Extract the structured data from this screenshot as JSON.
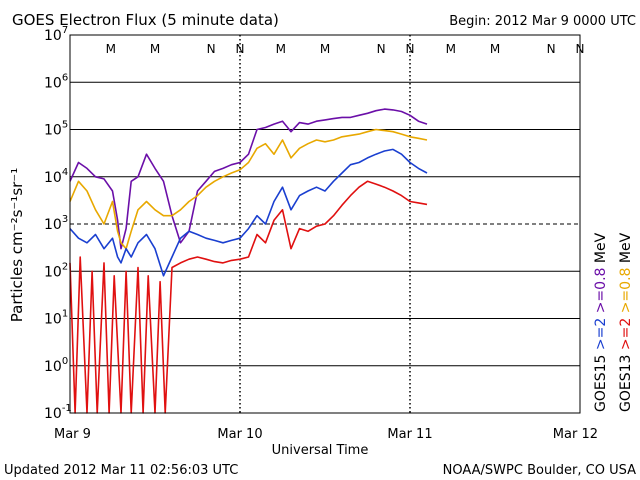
{
  "header": {
    "title": "GOES Electron Flux (5 minute data)",
    "begin": "Begin: 2012 Mar 9 0000 UTC"
  },
  "footer": {
    "updated": "Updated 2012 Mar 11 02:56:03 UTC",
    "credit": "NOAA/SWPC Boulder, CO USA"
  },
  "colors": {
    "g15_2mev": "#1a3fd0",
    "g15_08mev": "#6b0fa8",
    "g13_2mev": "#e01010",
    "g13_08mev": "#e8a800",
    "marker_M": "#c01010",
    "marker_N_red": "#c01010",
    "marker_N_blue": "#1a3fd0"
  },
  "chart_data": {
    "type": "line",
    "title": "GOES Electron Flux (5 minute data)",
    "xlabel": "Universal Time",
    "ylabel": "Particles cm⁻²s⁻¹sr⁻¹",
    "yscale": "log",
    "ylim": [
      0.1,
      10000000
    ],
    "xlim": [
      0,
      3
    ],
    "x_unit": "days since 2012 Mar 9 0000 UTC",
    "x_ticks": [
      {
        "x": 0,
        "label": "Mar 9"
      },
      {
        "x": 1,
        "label": "Mar 10"
      },
      {
        "x": 2,
        "label": "Mar 11"
      },
      {
        "x": 3,
        "label": "Mar 12"
      }
    ],
    "y_ticks": [
      {
        "exp": -1,
        "base": "10",
        "sup": "-1"
      },
      {
        "exp": 0,
        "base": "10",
        "sup": "0"
      },
      {
        "exp": 1,
        "base": "10",
        "sup": "1"
      },
      {
        "exp": 2,
        "base": "10",
        "sup": "2"
      },
      {
        "exp": 3,
        "base": "10",
        "sup": "3"
      },
      {
        "exp": 4,
        "base": "10",
        "sup": "4"
      },
      {
        "exp": 5,
        "base": "10",
        "sup": "5"
      },
      {
        "exp": 6,
        "base": "10",
        "sup": "6"
      },
      {
        "exp": 7,
        "base": "10",
        "sup": "7"
      }
    ],
    "dashed_threshold": 1000,
    "grid": true,
    "markers": [
      {
        "x": 0.24,
        "letter": "M",
        "color": "#c01010"
      },
      {
        "x": 0.5,
        "letter": "M",
        "color": "#1a3fd0"
      },
      {
        "x": 0.83,
        "letter": "N",
        "color": "#c01010"
      },
      {
        "x": 1.0,
        "letter": "N",
        "color": "#1a3fd0"
      },
      {
        "x": 1.24,
        "letter": "M",
        "color": "#c01010"
      },
      {
        "x": 1.5,
        "letter": "M",
        "color": "#1a3fd0"
      },
      {
        "x": 1.83,
        "letter": "N",
        "color": "#c01010"
      },
      {
        "x": 2.0,
        "letter": "N",
        "color": "#1a3fd0"
      },
      {
        "x": 2.24,
        "letter": "M",
        "color": "#c01010"
      },
      {
        "x": 2.5,
        "letter": "M",
        "color": "#1a3fd0"
      },
      {
        "x": 2.83,
        "letter": "N",
        "color": "#c01010"
      },
      {
        "x": 3.0,
        "letter": "N",
        "color": "#1a3fd0"
      }
    ],
    "legend": {
      "placement": "right, vertical",
      "rows": [
        {
          "sat": "GOES15",
          "e2": ">=2",
          "e08": ">=0.8",
          "unit": "MeV",
          "color_e2": "#1a3fd0",
          "color_e08": "#6b0fa8"
        },
        {
          "sat": "GOES13",
          "e2": ">=2",
          "e08": ">=0.8",
          "unit": "MeV",
          "color_e2": "#e01010",
          "color_e08": "#e8a800"
        }
      ]
    },
    "series": [
      {
        "name": "GOES15 >=0.8 MeV",
        "color": "#6b0fa8",
        "x": [
          0.0,
          0.05,
          0.1,
          0.15,
          0.2,
          0.25,
          0.28,
          0.3,
          0.33,
          0.36,
          0.4,
          0.45,
          0.5,
          0.55,
          0.6,
          0.65,
          0.7,
          0.75,
          0.8,
          0.85,
          0.9,
          0.95,
          1.0,
          1.05,
          1.1,
          1.15,
          1.2,
          1.25,
          1.3,
          1.35,
          1.4,
          1.45,
          1.5,
          1.55,
          1.6,
          1.65,
          1.7,
          1.75,
          1.8,
          1.85,
          1.9,
          1.95,
          2.0,
          2.05,
          2.1
        ],
        "y": [
          8000,
          20000,
          15000,
          10000,
          9000,
          5000,
          1200,
          300,
          800,
          8000,
          10000,
          30000,
          15000,
          8000,
          1500,
          400,
          700,
          5000,
          8000,
          13000,
          15000,
          18000,
          20000,
          30000,
          100000,
          110000,
          130000,
          150000,
          90000,
          140000,
          130000,
          150000,
          160000,
          170000,
          180000,
          180000,
          200000,
          220000,
          250000,
          270000,
          260000,
          240000,
          200000,
          150000,
          130000
        ]
      },
      {
        "name": "GOES13 >=0.8 MeV",
        "color": "#e8a800",
        "x": [
          0.0,
          0.05,
          0.1,
          0.15,
          0.2,
          0.25,
          0.28,
          0.3,
          0.33,
          0.36,
          0.4,
          0.45,
          0.5,
          0.55,
          0.6,
          0.65,
          0.7,
          0.75,
          0.8,
          0.85,
          0.9,
          0.95,
          1.0,
          1.05,
          1.1,
          1.15,
          1.2,
          1.25,
          1.3,
          1.35,
          1.4,
          1.45,
          1.5,
          1.55,
          1.6,
          1.65,
          1.7,
          1.75,
          1.8,
          1.85,
          1.9,
          1.95,
          2.0,
          2.05,
          2.1
        ],
        "y": [
          3000,
          8000,
          5000,
          2000,
          1000,
          3000,
          700,
          400,
          300,
          700,
          2000,
          3000,
          2000,
          1500,
          1500,
          2000,
          3000,
          4000,
          6000,
          8000,
          10000,
          12000,
          14000,
          20000,
          40000,
          50000,
          30000,
          60000,
          25000,
          40000,
          50000,
          60000,
          55000,
          60000,
          70000,
          75000,
          80000,
          90000,
          100000,
          95000,
          90000,
          80000,
          70000,
          65000,
          60000
        ]
      },
      {
        "name": "GOES15 >=2 MeV",
        "color": "#1a3fd0",
        "x": [
          0.0,
          0.05,
          0.1,
          0.15,
          0.2,
          0.25,
          0.28,
          0.3,
          0.33,
          0.36,
          0.4,
          0.45,
          0.5,
          0.55,
          0.6,
          0.65,
          0.7,
          0.75,
          0.8,
          0.85,
          0.9,
          0.95,
          1.0,
          1.05,
          1.1,
          1.15,
          1.2,
          1.25,
          1.3,
          1.35,
          1.4,
          1.45,
          1.5,
          1.55,
          1.6,
          1.65,
          1.7,
          1.75,
          1.8,
          1.85,
          1.9,
          1.95,
          2.0,
          2.05,
          2.1
        ],
        "y": [
          800,
          500,
          400,
          600,
          300,
          500,
          200,
          150,
          300,
          200,
          400,
          600,
          300,
          80,
          200,
          500,
          700,
          600,
          500,
          450,
          400,
          450,
          500,
          800,
          1500,
          1000,
          3000,
          6000,
          2000,
          4000,
          5000,
          6000,
          5000,
          8000,
          12000,
          18000,
          20000,
          25000,
          30000,
          35000,
          38000,
          30000,
          20000,
          15000,
          12000
        ]
      },
      {
        "name": "GOES13 >=2 MeV",
        "color": "#e01010",
        "x": [
          0.0,
          0.03,
          0.06,
          0.1,
          0.13,
          0.16,
          0.2,
          0.23,
          0.26,
          0.3,
          0.33,
          0.36,
          0.4,
          0.43,
          0.46,
          0.5,
          0.53,
          0.56,
          0.6,
          0.65,
          0.7,
          0.75,
          0.8,
          0.85,
          0.9,
          0.95,
          1.0,
          1.05,
          1.1,
          1.15,
          1.2,
          1.25,
          1.3,
          1.35,
          1.4,
          1.45,
          1.5,
          1.55,
          1.6,
          1.65,
          1.7,
          1.75,
          1.8,
          1.85,
          1.9,
          1.95,
          2.0,
          2.05,
          2.1
        ],
        "y": [
          150,
          0.1,
          200,
          0.1,
          100,
          0.1,
          150,
          0.1,
          80,
          0.1,
          100,
          0.1,
          120,
          0.1,
          80,
          0.1,
          60,
          0.1,
          120,
          150,
          180,
          200,
          180,
          160,
          150,
          170,
          180,
          200,
          600,
          400,
          1200,
          2000,
          300,
          800,
          700,
          900,
          1000,
          1500,
          2500,
          4000,
          6000,
          8000,
          7000,
          6000,
          5000,
          4000,
          3000,
          2800,
          2600
        ]
      }
    ]
  }
}
